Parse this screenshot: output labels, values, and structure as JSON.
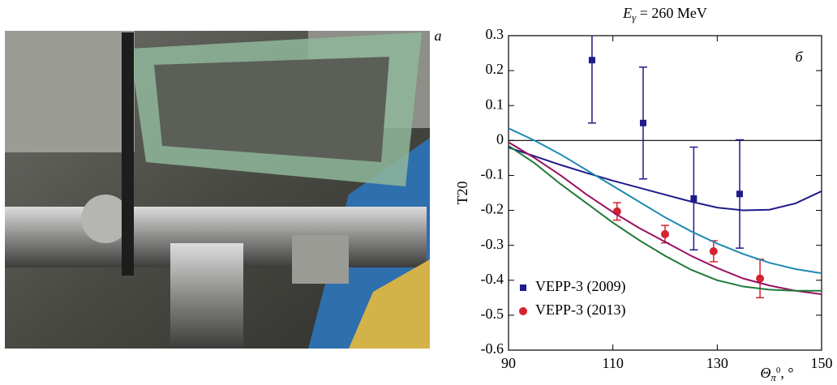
{
  "photo_label": "а",
  "chart_data": {
    "type": "line",
    "panel_label": "б",
    "title": {
      "symbol": "E",
      "sub": "γ",
      "rest": " = 260 MeV"
    },
    "ylabel": "T20",
    "xlabel": {
      "symbol": "Θ",
      "sub": "π",
      "sup": "0",
      "unit": ", °"
    },
    "xlim": [
      90,
      150
    ],
    "xticks": [
      90,
      110,
      130,
      150
    ],
    "ylim": [
      -0.6,
      0.3
    ],
    "yticks": [
      0.3,
      0.2,
      0.1,
      0,
      -0.1,
      -0.2,
      -0.3,
      -0.4,
      -0.5,
      -0.6
    ],
    "zero_line": true,
    "legend": "lower left",
    "series": [
      {
        "name": "VEPP-3 (2009)",
        "color": "#1f1a8a",
        "marker": "square",
        "x": [
          106,
          115.8,
          125.5,
          134.3
        ],
        "values": [
          0.23,
          0.05,
          -0.166,
          -0.153
        ],
        "errors": [
          0.18,
          0.16,
          0.147,
          0.155
        ]
      },
      {
        "name": "VEPP-3 (2013)",
        "color": "#d42330",
        "marker": "circle",
        "x": [
          110.8,
          120,
          129.3,
          138.2
        ],
        "values": [
          -0.203,
          -0.268,
          -0.317,
          -0.395
        ],
        "errors": [
          0.025,
          0.025,
          0.03,
          0.055
        ]
      },
      {
        "color": "#1f1a8a",
        "x": [
          90,
          95,
          100,
          105,
          110,
          115,
          120,
          125,
          130,
          135,
          140,
          145,
          150
        ],
        "values": [
          -0.02,
          -0.045,
          -0.07,
          -0.093,
          -0.115,
          -0.135,
          -0.155,
          -0.175,
          -0.192,
          -0.2,
          -0.198,
          -0.18,
          -0.145
        ]
      },
      {
        "color": "#1f8ab0",
        "x": [
          90,
          95,
          100,
          105,
          110,
          115,
          120,
          125,
          130,
          135,
          140,
          145,
          150
        ],
        "values": [
          0.035,
          0.0,
          -0.04,
          -0.085,
          -0.13,
          -0.175,
          -0.22,
          -0.26,
          -0.295,
          -0.325,
          -0.35,
          -0.368,
          -0.38
        ]
      },
      {
        "color": "#9a1060",
        "x": [
          90,
          95,
          100,
          105,
          110,
          115,
          120,
          125,
          130,
          135,
          140,
          145,
          150
        ],
        "values": [
          -0.005,
          -0.05,
          -0.1,
          -0.155,
          -0.205,
          -0.25,
          -0.29,
          -0.33,
          -0.365,
          -0.395,
          -0.415,
          -0.43,
          -0.44
        ]
      },
      {
        "color": "#1e7a3a",
        "x": [
          90,
          95,
          100,
          105,
          110,
          115,
          120,
          125,
          130,
          135,
          140,
          145,
          150
        ],
        "values": [
          -0.015,
          -0.065,
          -0.125,
          -0.18,
          -0.235,
          -0.285,
          -0.33,
          -0.37,
          -0.4,
          -0.418,
          -0.427,
          -0.43,
          -0.43
        ]
      }
    ]
  }
}
